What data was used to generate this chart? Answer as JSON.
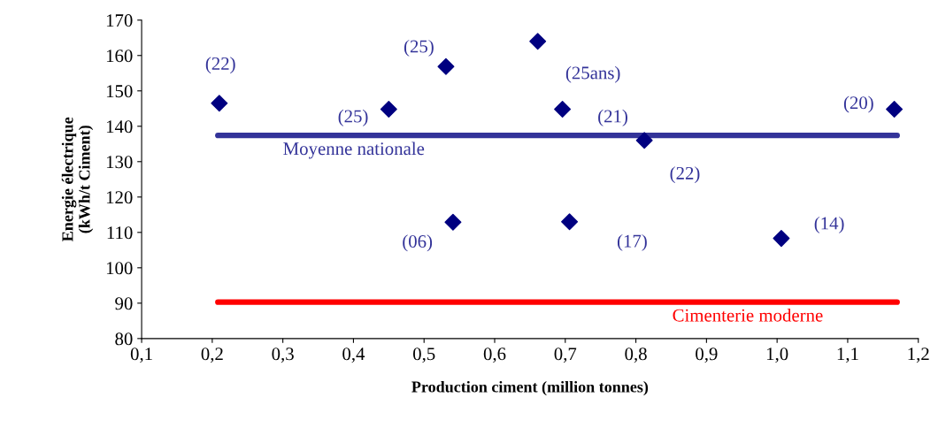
{
  "chart_data": {
    "type": "scatter",
    "xlabel": "Production ciment (million tonnes)",
    "ylabel": "Energie électrique\n(kWh/t Ciment)",
    "series": [
      {
        "color": "#000080",
        "marker": "diamond",
        "x": [
          0.21,
          0.45,
          0.531,
          0.661,
          0.696,
          0.812,
          1.166,
          0.541,
          0.706,
          1.006
        ],
        "values": [
          146.5,
          144.8,
          156.9,
          164,
          144.8,
          136,
          144.8,
          112.9,
          113,
          108.3
        ]
      },
      {
        "type": "line",
        "name": "Moyenne nationale",
        "color": "#333399",
        "x": [
          0.208,
          1.17
        ],
        "values": [
          137.4,
          137.4
        ]
      },
      {
        "type": "line",
        "name": "Cimenterie moderne",
        "color": "#ff0000",
        "x": [
          0.208,
          1.17
        ],
        "values": [
          90.3,
          90.3
        ]
      }
    ],
    "annotations": [
      {
        "text": "(22)",
        "x": 0.21,
        "y": 146.5
      },
      {
        "text": "(25)",
        "x": 0.45,
        "y": 144.8
      },
      {
        "text": "(25)",
        "x": 0.531,
        "y": 156.9
      },
      {
        "text": "(25ans)",
        "x": 0.661,
        "y": 164
      },
      {
        "text": "(21)",
        "x": 0.696,
        "y": 144.8
      },
      {
        "text": "(22)",
        "x": 0.812,
        "y": 136
      },
      {
        "text": "(20)",
        "x": 1.166,
        "y": 144.8
      },
      {
        "text": "(06)",
        "x": 0.541,
        "y": 112.9
      },
      {
        "text": "(17)",
        "x": 0.706,
        "y": 113
      },
      {
        "text": "(14)",
        "x": 1.006,
        "y": 108.3
      }
    ],
    "xlim": [
      0.1,
      1.2
    ],
    "ylim": [
      80,
      170
    ],
    "xticks": [
      {
        "value": 0.1,
        "label": "0,1"
      },
      {
        "value": 0.2,
        "label": "0,2"
      },
      {
        "value": 0.3,
        "label": "0,3"
      },
      {
        "value": 0.4,
        "label": "0,4"
      },
      {
        "value": 0.5,
        "label": "0,5"
      },
      {
        "value": 0.6,
        "label": "0,6"
      },
      {
        "value": 0.7,
        "label": "0,7"
      },
      {
        "value": 0.8,
        "label": "0,8"
      },
      {
        "value": 0.9,
        "label": "0,9"
      },
      {
        "value": 1.0,
        "label": "1,0"
      },
      {
        "value": 1.1,
        "label": "1,1"
      },
      {
        "value": 1.2,
        "label": "1,2"
      }
    ],
    "yticks": [
      80,
      90,
      100,
      110,
      120,
      130,
      140,
      150,
      160,
      170
    ],
    "grid": false,
    "legend": false
  }
}
